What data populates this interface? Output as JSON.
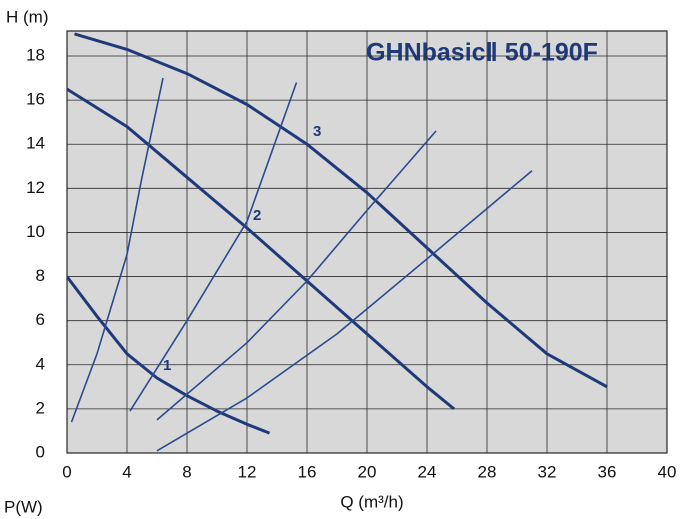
{
  "chart_data": {
    "type": "line",
    "title": "GHNbasicⅡ 50-190F",
    "y_label": "H (m)",
    "x_label": "Q (m³/h)",
    "power_label": "P(W)",
    "xlim": [
      0,
      40
    ],
    "xticks": [
      0,
      4,
      8,
      12,
      16,
      20,
      24,
      28,
      32,
      36,
      40
    ],
    "ylim": [
      0,
      18
    ],
    "yticks": [
      0,
      2,
      4,
      6,
      8,
      10,
      12,
      14,
      16,
      18
    ],
    "grid": true,
    "series": [
      {
        "name": "1",
        "color": "#1f3a7a",
        "x": [
          0,
          2,
          4,
          6,
          8,
          10,
          12,
          13.5
        ],
        "y": [
          8,
          6.2,
          4.5,
          3.4,
          2.6,
          1.9,
          1.3,
          0.9
        ]
      },
      {
        "name": "2",
        "color": "#1f3a7a",
        "x": [
          0,
          4,
          8,
          12,
          16,
          20,
          24,
          25.8
        ],
        "y": [
          16.5,
          14.8,
          12.5,
          10.2,
          7.8,
          5.4,
          3,
          2
        ]
      },
      {
        "name": "3",
        "color": "#1f3a7a",
        "x": [
          0.5,
          4,
          8,
          12,
          16,
          20,
          24,
          28,
          32,
          36
        ],
        "y": [
          19,
          18.3,
          17.2,
          15.8,
          14,
          11.8,
          9.3,
          6.8,
          4.5,
          3
        ]
      },
      {
        "color": "#2b4a90",
        "x": [
          0.3,
          2,
          4,
          5,
          6.4
        ],
        "y": [
          1.4,
          4.5,
          9,
          12.5,
          17
        ]
      },
      {
        "color": "#2b4a90",
        "x": [
          4.2,
          8,
          12,
          15.3
        ],
        "y": [
          1.9,
          6,
          10.5,
          16.8
        ]
      },
      {
        "color": "#2b4a90",
        "x": [
          6,
          12,
          16,
          20,
          24.6
        ],
        "y": [
          1.5,
          5,
          7.8,
          11,
          14.6
        ]
      },
      {
        "color": "#2b4a90",
        "x": [
          6,
          12,
          18,
          24,
          31
        ],
        "y": [
          0.1,
          2.5,
          5.4,
          8.8,
          12.8
        ]
      }
    ]
  }
}
